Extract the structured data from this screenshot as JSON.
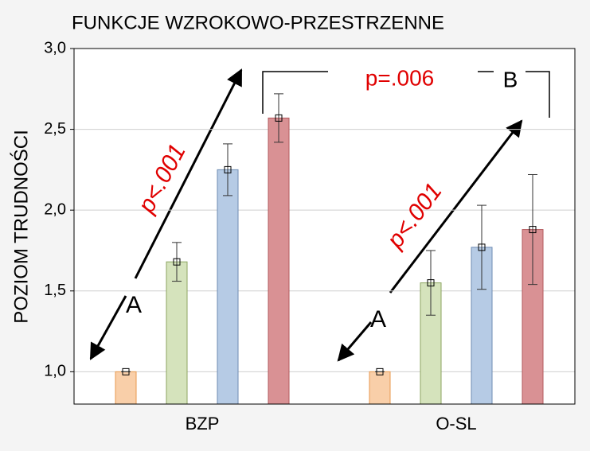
{
  "chart_data": {
    "type": "bar",
    "title": "FUNKCJE WZROKOWO-PRZESTRZENNE",
    "y_label": "POZIOM TRUDNOŚCI",
    "categories": [
      "BZP",
      "O-SL"
    ],
    "series": [
      {
        "color": "#f9cfa9",
        "values": [
          1.0,
          1.0
        ],
        "errors": [
          0,
          0
        ]
      },
      {
        "color": "#d5e3bc",
        "values": [
          1.68,
          1.55
        ],
        "errors": [
          0.12,
          0.2
        ]
      },
      {
        "color": "#b6cbe5",
        "values": [
          2.25,
          1.77
        ],
        "errors": [
          0.16,
          0.26
        ]
      },
      {
        "color": "#d99194",
        "values": [
          2.57,
          1.88
        ],
        "errors": [
          0.15,
          0.34
        ]
      }
    ],
    "ylim": [
      0.8,
      3.0
    ],
    "yticks": [
      {
        "value": 1.0,
        "label": "1,0"
      },
      {
        "value": 1.5,
        "label": "1,5"
      },
      {
        "value": 2.0,
        "label": "2,0"
      },
      {
        "value": 2.5,
        "label": "2,5"
      },
      {
        "value": 3.0,
        "label": "3,0"
      }
    ],
    "grid": true,
    "annotations": [
      "p<.001",
      "A",
      "p<.001",
      "A",
      "p=.006",
      "B"
    ]
  }
}
